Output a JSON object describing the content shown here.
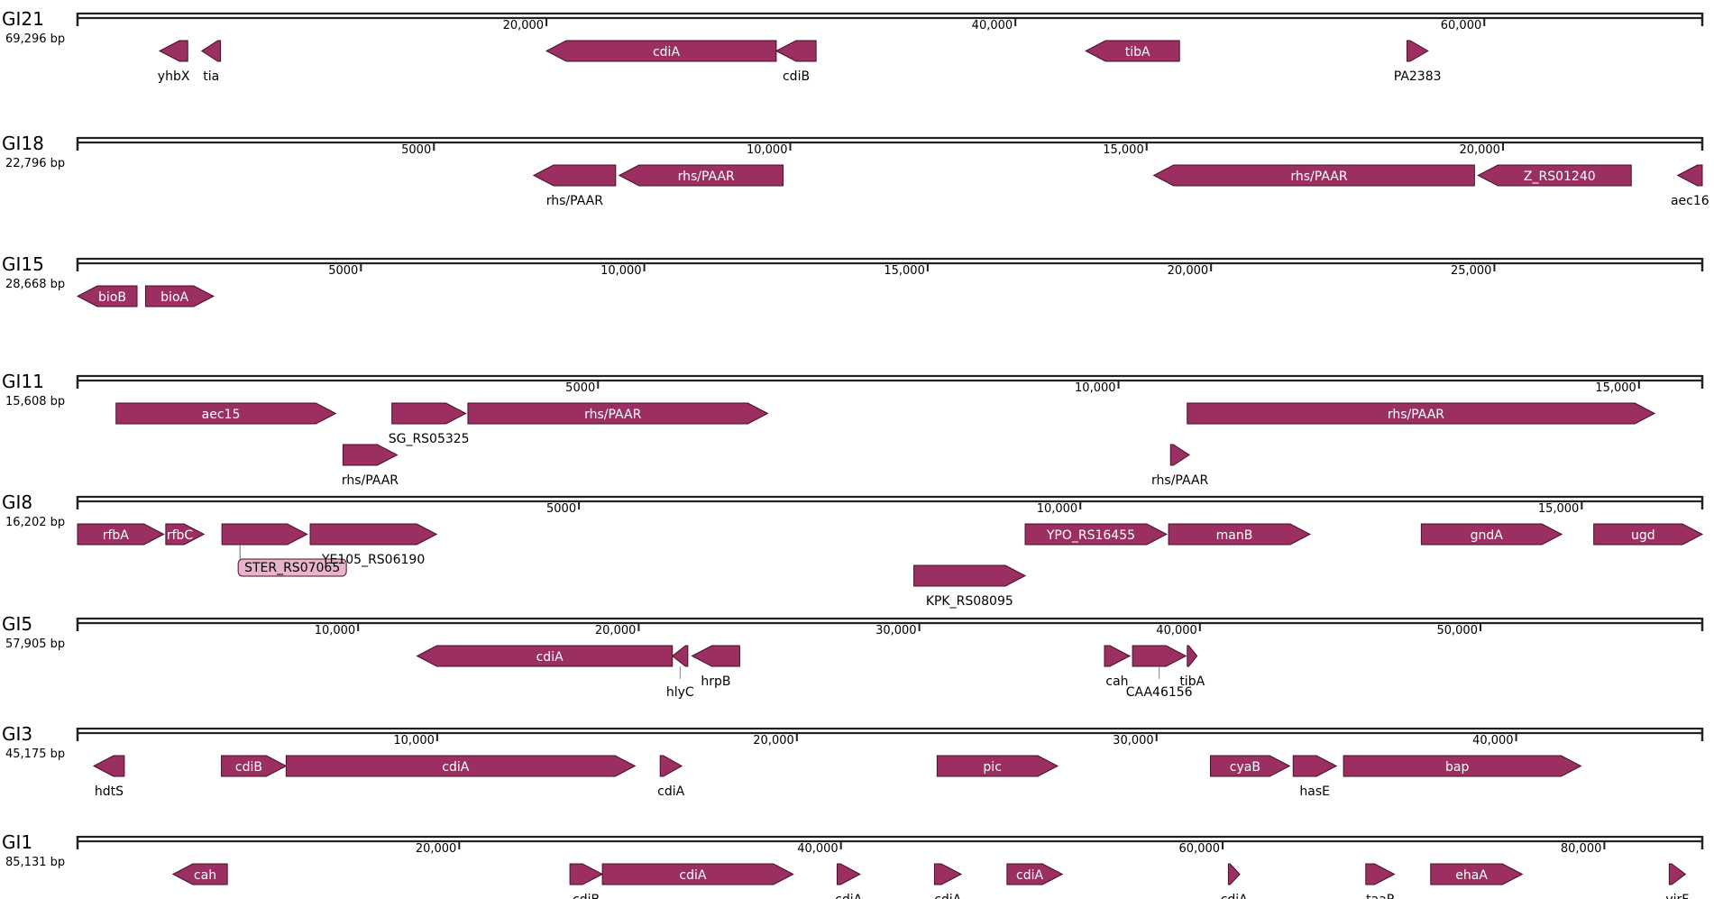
{
  "colors": {
    "gene_fill": "#9b2f62",
    "gene_stroke": "#4a0f2a",
    "highlight_fill": "#e8b4cc",
    "axis": "#222222"
  },
  "tracks": [
    {
      "name": "GI21",
      "length_label": "69,296 bp",
      "length": 69296,
      "ticks": [
        {
          "pos": 20000,
          "label": "20,000"
        },
        {
          "pos": 40000,
          "label": "40,000"
        },
        {
          "pos": 60000,
          "label": "60,000"
        }
      ],
      "genes": [
        {
          "label": "yhbX",
          "start": 3500,
          "end": 4700,
          "strand": -1,
          "row": 0,
          "label_pos": "below"
        },
        {
          "label": "tia",
          "start": 5300,
          "end": 6100,
          "strand": -1,
          "row": 0,
          "label_pos": "below"
        },
        {
          "label": "cdiA",
          "start": 20000,
          "end": 29800,
          "strand": -1,
          "row": 0,
          "label_pos": "inside"
        },
        {
          "label": "cdiB",
          "start": 29800,
          "end": 31500,
          "strand": -1,
          "row": 0,
          "label_pos": "below"
        },
        {
          "label": "tibA",
          "start": 43000,
          "end": 47000,
          "strand": -1,
          "row": 0,
          "label_pos": "inside"
        },
        {
          "label": "PA2383",
          "start": 56700,
          "end": 57600,
          "strand": 1,
          "row": 0,
          "label_pos": "below"
        }
      ]
    },
    {
      "name": "GI18",
      "length_label": "22,796 bp",
      "length": 22796,
      "ticks": [
        {
          "pos": 5000,
          "label": "5000"
        },
        {
          "pos": 10000,
          "label": "10,000"
        },
        {
          "pos": 15000,
          "label": "15,000"
        },
        {
          "pos": 20000,
          "label": "20,000"
        }
      ],
      "genes": [
        {
          "label": "rhs/PAAR",
          "start": 6400,
          "end": 7550,
          "strand": -1,
          "row": 0,
          "label_pos": "below"
        },
        {
          "label": "rhs/PAAR",
          "start": 7600,
          "end": 9900,
          "strand": -1,
          "row": 0,
          "label_pos": "inside"
        },
        {
          "label": "rhs/PAAR",
          "start": 15100,
          "end": 19600,
          "strand": -1,
          "row": 0,
          "label_pos": "inside"
        },
        {
          "label": "Z_RS01240",
          "start": 19650,
          "end": 21800,
          "strand": -1,
          "row": 0,
          "label_pos": "inside"
        },
        {
          "label": "aec16",
          "start": 22450,
          "end": 22796,
          "strand": -1,
          "row": 0,
          "label_pos": "below"
        }
      ]
    },
    {
      "name": "GI15",
      "length_label": "28,668 bp",
      "length": 28668,
      "ticks": [
        {
          "pos": 5000,
          "label": "5000"
        },
        {
          "pos": 10000,
          "label": "10,000"
        },
        {
          "pos": 15000,
          "label": "15,000"
        },
        {
          "pos": 20000,
          "label": "20,000"
        },
        {
          "pos": 25000,
          "label": "25,000"
        }
      ],
      "genes": [
        {
          "label": "bioB",
          "start": 0,
          "end": 1050,
          "strand": -1,
          "row": 0,
          "label_pos": "inside"
        },
        {
          "label": "bioA",
          "start": 1200,
          "end": 2400,
          "strand": 1,
          "row": 0,
          "label_pos": "inside"
        }
      ]
    },
    {
      "name": "GI11",
      "length_label": "15,608 bp",
      "length": 15608,
      "ticks": [
        {
          "pos": 5000,
          "label": "5000"
        },
        {
          "pos": 10000,
          "label": "10,000"
        },
        {
          "pos": 15000,
          "label": "15,000"
        }
      ],
      "genes": [
        {
          "label": "aec15",
          "start": 370,
          "end": 2480,
          "strand": 1,
          "row": 0,
          "label_pos": "inside"
        },
        {
          "label": "SG_RS05325",
          "start": 3020,
          "end": 3730,
          "strand": 1,
          "row": 0,
          "label_pos": "below"
        },
        {
          "label": "rhs/PAAR",
          "start": 3750,
          "end": 6630,
          "strand": 1,
          "row": 0,
          "label_pos": "inside"
        },
        {
          "label": "rhs/PAAR",
          "start": 10660,
          "end": 15150,
          "strand": 1,
          "row": 0,
          "label_pos": "inside"
        },
        {
          "label": "rhs/PAAR",
          "start": 2550,
          "end": 3070,
          "strand": 1,
          "row": 1,
          "label_pos": "below"
        },
        {
          "label": "rhs/PAAR",
          "start": 10500,
          "end": 10680,
          "strand": 1,
          "row": 1,
          "label_pos": "below"
        }
      ]
    },
    {
      "name": "GI8",
      "length_label": "16,202 bp",
      "length": 16202,
      "ticks": [
        {
          "pos": 5000,
          "label": "5000"
        },
        {
          "pos": 10000,
          "label": "10,000"
        },
        {
          "pos": 15000,
          "label": "15,000"
        }
      ],
      "genes": [
        {
          "label": "rfbA",
          "start": 0,
          "end": 860,
          "strand": 1,
          "row": 0,
          "label_pos": "inside"
        },
        {
          "label": "rfbC",
          "start": 880,
          "end": 1260,
          "strand": 1,
          "row": 0,
          "label_pos": "inside"
        },
        {
          "label": "STER_RS07065",
          "start": 1440,
          "end": 2290,
          "strand": 1,
          "row": 0,
          "label_pos": "callout"
        },
        {
          "label": "YE105_RS06190",
          "start": 2320,
          "end": 3580,
          "strand": 1,
          "row": 0,
          "label_pos": "below"
        },
        {
          "label": "YPO_RS16455",
          "start": 9450,
          "end": 10860,
          "strand": 1,
          "row": 0,
          "label_pos": "inside"
        },
        {
          "label": "manB",
          "start": 10880,
          "end": 12290,
          "strand": 1,
          "row": 0,
          "label_pos": "inside"
        },
        {
          "label": "gndA",
          "start": 13400,
          "end": 14800,
          "strand": 1,
          "row": 0,
          "label_pos": "inside"
        },
        {
          "label": "ugd",
          "start": 15120,
          "end": 16202,
          "strand": 1,
          "row": 0,
          "label_pos": "inside"
        },
        {
          "label": "KPK_RS08095",
          "start": 8340,
          "end": 9450,
          "strand": 1,
          "row": 1,
          "label_pos": "below"
        }
      ]
    },
    {
      "name": "GI5",
      "length_label": "57,905 bp",
      "length": 57905,
      "ticks": [
        {
          "pos": 10000,
          "label": "10,000"
        },
        {
          "pos": 20000,
          "label": "20,000"
        },
        {
          "pos": 30000,
          "label": "30,000"
        },
        {
          "pos": 40000,
          "label": "40,000"
        },
        {
          "pos": 50000,
          "label": "50,000"
        }
      ],
      "genes": [
        {
          "label": "cdiA",
          "start": 12100,
          "end": 21200,
          "strand": -1,
          "row": 0,
          "label_pos": "inside"
        },
        {
          "label": "hlyC",
          "start": 21200,
          "end": 21750,
          "strand": -1,
          "row": 0,
          "label_pos": "callout_line"
        },
        {
          "label": "hrpB",
          "start": 21900,
          "end": 23600,
          "strand": -1,
          "row": 0,
          "label_pos": "below"
        },
        {
          "label": "cah",
          "start": 36600,
          "end": 37500,
          "strand": 1,
          "row": 0,
          "label_pos": "below"
        },
        {
          "label": "CAA46156",
          "start": 37600,
          "end": 39500,
          "strand": 1,
          "row": 0,
          "label_pos": "callout_line"
        },
        {
          "label": "tibA",
          "start": 39550,
          "end": 39900,
          "strand": 1,
          "row": 0,
          "label_pos": "below"
        }
      ]
    },
    {
      "name": "GI3",
      "length_label": "45,175 bp",
      "length": 45175,
      "ticks": [
        {
          "pos": 10000,
          "label": "10,000"
        },
        {
          "pos": 20000,
          "label": "20,000"
        },
        {
          "pos": 30000,
          "label": "30,000"
        },
        {
          "pos": 40000,
          "label": "40,000"
        }
      ],
      "genes": [
        {
          "label": "hdtS",
          "start": 450,
          "end": 1300,
          "strand": -1,
          "row": 0,
          "label_pos": "below"
        },
        {
          "label": "cdiB",
          "start": 4000,
          "end": 5800,
          "strand": 1,
          "row": 0,
          "label_pos": "inside"
        },
        {
          "label": "cdiA",
          "start": 5800,
          "end": 15500,
          "strand": 1,
          "row": 0,
          "label_pos": "inside"
        },
        {
          "label": "cdiA",
          "start": 16200,
          "end": 16800,
          "strand": 1,
          "row": 0,
          "label_pos": "below"
        },
        {
          "label": "pic",
          "start": 23900,
          "end": 27250,
          "strand": 1,
          "row": 0,
          "label_pos": "inside"
        },
        {
          "label": "cyaB",
          "start": 31500,
          "end": 33700,
          "strand": 1,
          "row": 0,
          "label_pos": "inside"
        },
        {
          "label": "hasE",
          "start": 33800,
          "end": 35000,
          "strand": 1,
          "row": 0,
          "label_pos": "below"
        },
        {
          "label": "bap",
          "start": 35200,
          "end": 41800,
          "strand": 1,
          "row": 0,
          "label_pos": "inside"
        }
      ]
    },
    {
      "name": "GI1",
      "length_label": "85,131 bp",
      "length": 85131,
      "ticks": [
        {
          "pos": 20000,
          "label": "20,000"
        },
        {
          "pos": 40000,
          "label": "40,000"
        },
        {
          "pos": 60000,
          "label": "60,000"
        },
        {
          "pos": 80000,
          "label": "80,000"
        }
      ],
      "genes": [
        {
          "label": "cah",
          "start": 5000,
          "end": 7850,
          "strand": -1,
          "row": 0,
          "label_pos": "inside"
        },
        {
          "label": "cdiB",
          "start": 25800,
          "end": 27500,
          "strand": 1,
          "row": 0,
          "label_pos": "below"
        },
        {
          "label": "cdiA",
          "start": 27500,
          "end": 37500,
          "strand": 1,
          "row": 0,
          "label_pos": "inside"
        },
        {
          "label": "cdiA",
          "start": 39800,
          "end": 41000,
          "strand": 1,
          "row": 0,
          "label_pos": "below"
        },
        {
          "label": "cdiA",
          "start": 44900,
          "end": 46300,
          "strand": 1,
          "row": 0,
          "label_pos": "below"
        },
        {
          "label": "cdiA",
          "start": 48700,
          "end": 51600,
          "strand": 1,
          "row": 0,
          "label_pos": "inside"
        },
        {
          "label": "cdiA",
          "start": 60300,
          "end": 60900,
          "strand": 1,
          "row": 0,
          "label_pos": "below"
        },
        {
          "label": "taaP",
          "start": 67500,
          "end": 69000,
          "strand": 1,
          "row": 0,
          "label_pos": "below"
        },
        {
          "label": "ehaA",
          "start": 70900,
          "end": 75700,
          "strand": 1,
          "row": 0,
          "label_pos": "inside"
        },
        {
          "label": "virF",
          "start": 83400,
          "end": 84250,
          "strand": 1,
          "row": 0,
          "label_pos": "below"
        }
      ]
    }
  ]
}
